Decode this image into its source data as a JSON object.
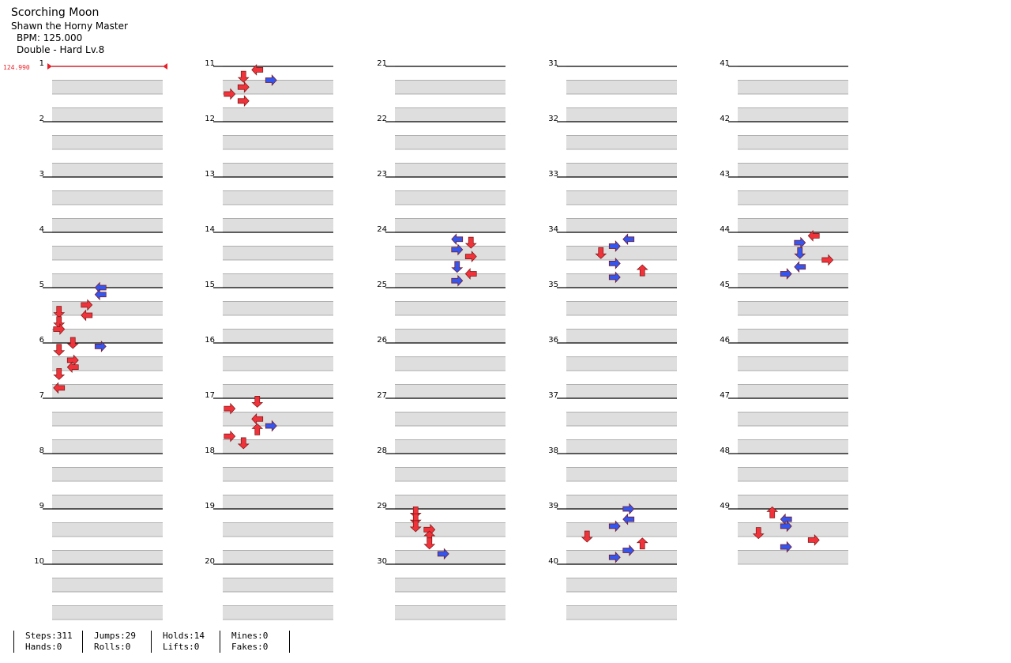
{
  "song": {
    "title": "Scorching Moon",
    "artist": "Shawn the Horny Master",
    "bpm_label": "BPM: 125.000",
    "difficulty": "Double - Hard Lv.8"
  },
  "bpm_change": {
    "label": "124.990",
    "color": "#e8222a"
  },
  "colors": {
    "red": "#f0333a",
    "blue": "#3455ee",
    "yellow": "#f3e435",
    "cyan": "#4fe8f0",
    "orange": "#f08a30",
    "hold": "#8fe68f"
  },
  "panels": 8,
  "measures_per_column": 10,
  "measure_numbers": [
    "1",
    "2",
    "3",
    "4",
    "5",
    "6",
    "7",
    "8",
    "9",
    "10",
    "11",
    "12",
    "13",
    "14",
    "15",
    "16",
    "17",
    "18",
    "19",
    "20",
    "21",
    "22",
    "23",
    "24",
    "25",
    "26",
    "27",
    "28",
    "29",
    "30",
    "31",
    "32",
    "33",
    "34",
    "35",
    "36",
    "37",
    "38",
    "39",
    "40",
    "41",
    "42",
    "43",
    "44",
    "45",
    "46",
    "47",
    "48",
    "49"
  ],
  "notes": [
    {
      "m": 4,
      "b": 0,
      "p": 3,
      "d": "left"
    },
    {
      "m": 4,
      "b": 2,
      "p": 3,
      "d": "left"
    },
    {
      "m": 4,
      "b": 5,
      "p": 2,
      "d": "right"
    },
    {
      "m": 4,
      "b": 7,
      "p": 0,
      "d": "down"
    },
    {
      "m": 4,
      "b": 8,
      "p": 2,
      "d": "left"
    },
    {
      "m": 4,
      "b": 10,
      "p": 0,
      "d": "down"
    },
    {
      "m": 4,
      "b": 12,
      "p": 0,
      "d": "right"
    },
    {
      "m": 5,
      "b": 0,
      "p": 1,
      "d": "down"
    },
    {
      "m": 5,
      "b": 1,
      "p": 3,
      "d": "right"
    },
    {
      "m": 5,
      "b": 2,
      "p": 0,
      "d": "down"
    },
    {
      "m": 5,
      "b": 5,
      "p": 1,
      "d": "right"
    },
    {
      "m": 5,
      "b": 7,
      "p": 1,
      "d": "left"
    },
    {
      "m": 5,
      "b": 9,
      "p": 0,
      "d": "down"
    },
    {
      "m": 5,
      "b": 13,
      "p": 0,
      "d": "left"
    },
    {
      "m": 10,
      "b": 1,
      "p": 2,
      "d": "left"
    },
    {
      "m": 10,
      "b": 3,
      "p": 1,
      "d": "down"
    },
    {
      "m": 10,
      "b": 4,
      "p": 3,
      "d": "right"
    },
    {
      "m": 10,
      "b": 6,
      "p": 1,
      "d": "right"
    },
    {
      "m": 10,
      "b": 8,
      "p": 0,
      "d": "right"
    },
    {
      "m": 10,
      "b": 10,
      "p": 1,
      "d": "right"
    },
    {
      "m": 16,
      "b": 1,
      "p": 2,
      "d": "down"
    },
    {
      "m": 16,
      "b": 3,
      "p": 0,
      "d": "right"
    },
    {
      "m": 16,
      "b": 6,
      "p": 2,
      "d": "left"
    },
    {
      "m": 16,
      "b": 8,
      "p": 3,
      "d": "right"
    },
    {
      "m": 16,
      "b": 9,
      "p": 2,
      "d": "up"
    },
    {
      "m": 16,
      "b": 11,
      "p": 0,
      "d": "right"
    },
    {
      "m": 16,
      "b": 13,
      "p": 1,
      "d": "down"
    },
    {
      "m": 23,
      "b": 2,
      "p": 4,
      "d": "left"
    },
    {
      "m": 23,
      "b": 3,
      "p": 5,
      "d": "down"
    },
    {
      "m": 23,
      "b": 5,
      "p": 4,
      "d": "right"
    },
    {
      "m": 23,
      "b": 7,
      "p": 5,
      "d": "right"
    },
    {
      "m": 23,
      "b": 10,
      "p": 4,
      "d": "down"
    },
    {
      "m": 23,
      "b": 12,
      "p": 5,
      "d": "left"
    },
    {
      "m": 23,
      "b": 14,
      "p": 4,
      "d": "right"
    },
    {
      "m": 28,
      "b": 1,
      "p": 1,
      "d": "down"
    },
    {
      "m": 28,
      "b": 3,
      "p": 1,
      "d": "down"
    },
    {
      "m": 28,
      "b": 5,
      "p": 1,
      "d": "down"
    },
    {
      "m": 28,
      "b": 6,
      "p": 2,
      "d": "right"
    },
    {
      "m": 28,
      "b": 8,
      "p": 2,
      "d": "up"
    },
    {
      "m": 28,
      "b": 10,
      "p": 2,
      "d": "down"
    },
    {
      "m": 28,
      "b": 13,
      "p": 3,
      "d": "right"
    },
    {
      "m": 33,
      "b": 2,
      "p": 4,
      "d": "left"
    },
    {
      "m": 33,
      "b": 4,
      "p": 3,
      "d": "right"
    },
    {
      "m": 33,
      "b": 6,
      "p": 2,
      "d": "down"
    },
    {
      "m": 33,
      "b": 9,
      "p": 3,
      "d": "right"
    },
    {
      "m": 33,
      "b": 11,
      "p": 5,
      "d": "up"
    },
    {
      "m": 33,
      "b": 13,
      "p": 3,
      "d": "right"
    },
    {
      "m": 38,
      "b": 0,
      "p": 4,
      "d": "right"
    },
    {
      "m": 38,
      "b": 3,
      "p": 4,
      "d": "left"
    },
    {
      "m": 38,
      "b": 5,
      "p": 3,
      "d": "right"
    },
    {
      "m": 38,
      "b": 8,
      "p": 1,
      "d": "down"
    },
    {
      "m": 38,
      "b": 10,
      "p": 5,
      "d": "up"
    },
    {
      "m": 38,
      "b": 12,
      "p": 4,
      "d": "right"
    },
    {
      "m": 38,
      "b": 14,
      "p": 3,
      "d": "right"
    },
    {
      "m": 43,
      "b": 1,
      "p": 5,
      "d": "left"
    },
    {
      "m": 43,
      "b": 3,
      "p": 4,
      "d": "right"
    },
    {
      "m": 43,
      "b": 6,
      "p": 4,
      "d": "down"
    },
    {
      "m": 43,
      "b": 8,
      "p": 6,
      "d": "right"
    },
    {
      "m": 43,
      "b": 10,
      "p": 4,
      "d": "left"
    },
    {
      "m": 43,
      "b": 12,
      "p": 3,
      "d": "right"
    },
    {
      "m": 48,
      "b": 1,
      "p": 2,
      "d": "up"
    },
    {
      "m": 48,
      "b": 3,
      "p": 3,
      "d": "left"
    },
    {
      "m": 48,
      "b": 5,
      "p": 3,
      "d": "right"
    },
    {
      "m": 48,
      "b": 7,
      "p": 1,
      "d": "down"
    },
    {
      "m": 48,
      "b": 9,
      "p": 5,
      "d": "right"
    },
    {
      "m": 48,
      "b": 11,
      "p": 3,
      "d": "right"
    }
  ],
  "stats": [
    [
      "Steps:311",
      "Hands:0"
    ],
    [
      "Jumps:29",
      "Rolls:0"
    ],
    [
      "Holds:14",
      "Lifts:0"
    ],
    [
      "Mines:0",
      "Fakes:0"
    ]
  ]
}
